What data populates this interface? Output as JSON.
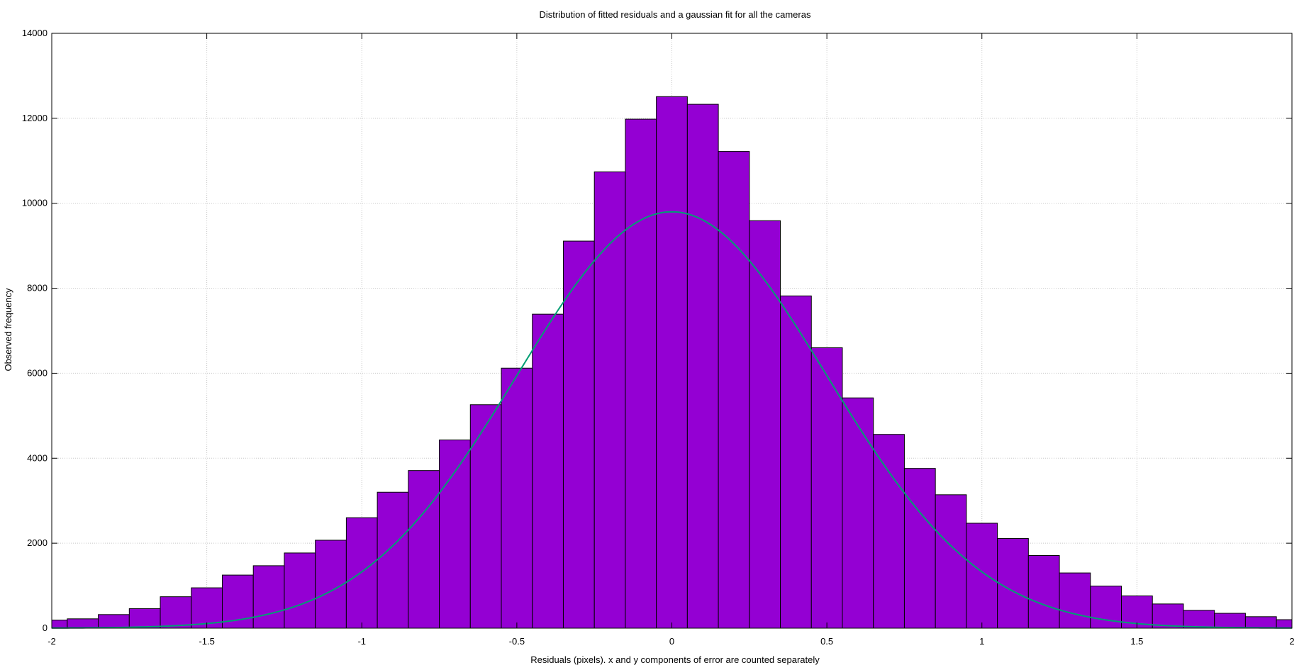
{
  "chart_data": {
    "type": "bar",
    "title": "Distribution of fitted residuals and a gaussian fit for all the cameras",
    "xlabel": "Residuals (pixels). x and y components of error are counted separately",
    "ylabel": "Observed frequency",
    "xlim": [
      -2,
      2
    ],
    "ylim": [
      0,
      14000
    ],
    "grid": true,
    "legend": "none",
    "xticks": [
      "-2",
      "-1.5",
      "-1",
      "-0.5",
      "0",
      "0.5",
      "1",
      "1.5",
      "2"
    ],
    "yticks": [
      "0",
      "2000",
      "4000",
      "6000",
      "8000",
      "10000",
      "12000",
      "14000"
    ],
    "bin_width": 0.1,
    "bins": [
      {
        "x": -2.0,
        "value": 190
      },
      {
        "x": -1.9,
        "value": 220
      },
      {
        "x": -1.8,
        "value": 320
      },
      {
        "x": -1.7,
        "value": 460
      },
      {
        "x": -1.6,
        "value": 740
      },
      {
        "x": -1.5,
        "value": 950
      },
      {
        "x": -1.4,
        "value": 1250
      },
      {
        "x": -1.3,
        "value": 1470
      },
      {
        "x": -1.2,
        "value": 1770
      },
      {
        "x": -1.1,
        "value": 2070
      },
      {
        "x": -1.0,
        "value": 2600
      },
      {
        "x": -0.9,
        "value": 3200
      },
      {
        "x": -0.8,
        "value": 3710
      },
      {
        "x": -0.7,
        "value": 4430
      },
      {
        "x": -0.6,
        "value": 5260
      },
      {
        "x": -0.5,
        "value": 6120
      },
      {
        "x": -0.4,
        "value": 7390
      },
      {
        "x": -0.3,
        "value": 9110
      },
      {
        "x": -0.2,
        "value": 10740
      },
      {
        "x": -0.1,
        "value": 11980
      },
      {
        "x": 0.0,
        "value": 12510
      },
      {
        "x": 0.1,
        "value": 12330
      },
      {
        "x": 0.2,
        "value": 11220
      },
      {
        "x": 0.3,
        "value": 9590
      },
      {
        "x": 0.4,
        "value": 7820
      },
      {
        "x": 0.5,
        "value": 6600
      },
      {
        "x": 0.6,
        "value": 5420
      },
      {
        "x": 0.7,
        "value": 4560
      },
      {
        "x": 0.8,
        "value": 3760
      },
      {
        "x": 0.9,
        "value": 3140
      },
      {
        "x": 1.0,
        "value": 2470
      },
      {
        "x": 1.1,
        "value": 2110
      },
      {
        "x": 1.2,
        "value": 1710
      },
      {
        "x": 1.3,
        "value": 1300
      },
      {
        "x": 1.4,
        "value": 990
      },
      {
        "x": 1.5,
        "value": 760
      },
      {
        "x": 1.6,
        "value": 570
      },
      {
        "x": 1.7,
        "value": 420
      },
      {
        "x": 1.8,
        "value": 350
      },
      {
        "x": 1.9,
        "value": 270
      },
      {
        "x": 2.0,
        "value": 200
      }
    ],
    "gaussian_fit": {
      "mean": 0.0,
      "sigma": 0.5,
      "peak": 9800
    },
    "colors": {
      "bar_fill": "#9400D3",
      "bar_stroke": "#000000",
      "curve": "#009E73",
      "grid": "#c8c8c8"
    }
  }
}
